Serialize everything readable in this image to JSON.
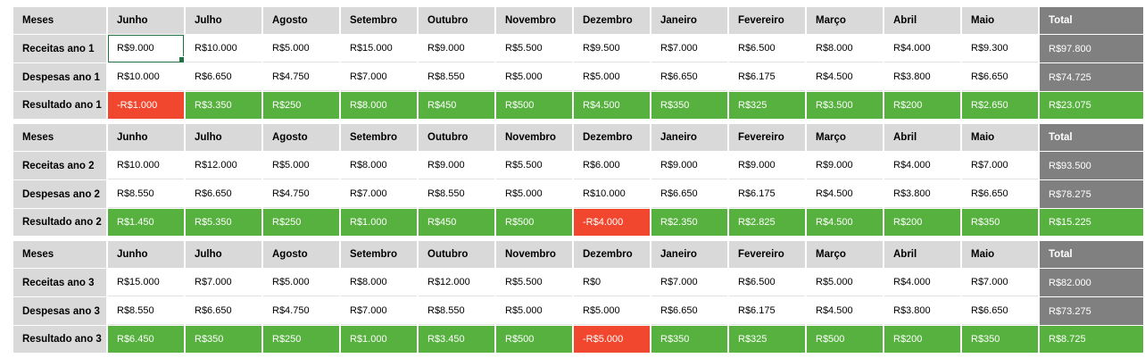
{
  "months": [
    "Junho",
    "Julho",
    "Agosto",
    "Setembro",
    "Outubro",
    "Novembro",
    "Dezembro",
    "Janeiro",
    "Fevereiro",
    "Março",
    "Abril",
    "Maio"
  ],
  "header_label": "Meses",
  "total_label": "Total",
  "years": [
    {
      "rows": [
        {
          "label": "Receitas ano 1",
          "type": "plain",
          "values": [
            "R$9.000",
            "R$10.000",
            "R$5.000",
            "R$15.000",
            "R$9.000",
            "R$5.500",
            "R$9.500",
            "R$7.000",
            "R$6.500",
            "R$8.000",
            "R$4.000",
            "R$9.300"
          ],
          "total": "R$97.800"
        },
        {
          "label": "Despesas ano 1",
          "type": "plain",
          "values": [
            "R$10.000",
            "R$6.650",
            "R$4.750",
            "R$7.000",
            "R$8.550",
            "R$5.000",
            "R$5.000",
            "R$6.650",
            "R$6.175",
            "R$4.500",
            "R$3.800",
            "R$6.650"
          ],
          "total": "R$74.725"
        },
        {
          "label": "Resultado ano 1",
          "type": "result",
          "values": [
            "-R$1.000",
            "R$3.350",
            "R$250",
            "R$8.000",
            "R$450",
            "R$500",
            "R$4.500",
            "R$350",
            "R$325",
            "R$3.500",
            "R$200",
            "R$2.650"
          ],
          "total": "R$23.075"
        }
      ]
    },
    {
      "rows": [
        {
          "label": "Receitas ano 2",
          "type": "plain",
          "values": [
            "R$10.000",
            "R$12.000",
            "R$5.000",
            "R$8.000",
            "R$9.000",
            "R$5.500",
            "R$6.000",
            "R$9.000",
            "R$9.000",
            "R$9.000",
            "R$4.000",
            "R$7.000"
          ],
          "total": "R$93.500"
        },
        {
          "label": "Despesas ano 2",
          "type": "plain",
          "values": [
            "R$8.550",
            "R$6.650",
            "R$4.750",
            "R$7.000",
            "R$8.550",
            "R$5.000",
            "R$10.000",
            "R$6.650",
            "R$6.175",
            "R$4.500",
            "R$3.800",
            "R$6.650"
          ],
          "total": "R$78.275"
        },
        {
          "label": "Resultado ano 2",
          "type": "result",
          "values": [
            "R$1.450",
            "R$5.350",
            "R$250",
            "R$1.000",
            "R$450",
            "R$500",
            "-R$4.000",
            "R$2.350",
            "R$2.825",
            "R$4.500",
            "R$200",
            "R$350"
          ],
          "total": "R$15.225"
        }
      ]
    },
    {
      "rows": [
        {
          "label": "Receitas ano 3",
          "type": "plain",
          "values": [
            "R$15.000",
            "R$7.000",
            "R$5.000",
            "R$8.000",
            "R$12.000",
            "R$5.500",
            "R$0",
            "R$7.000",
            "R$6.500",
            "R$5.000",
            "R$4.000",
            "R$7.000"
          ],
          "total": "R$82.000"
        },
        {
          "label": "Despesas ano 3",
          "type": "plain",
          "values": [
            "R$8.550",
            "R$6.650",
            "R$4.750",
            "R$7.000",
            "R$8.550",
            "R$5.000",
            "R$5.000",
            "R$6.650",
            "R$6.175",
            "R$4.500",
            "R$3.800",
            "R$6.650"
          ],
          "total": "R$73.275"
        },
        {
          "label": "Resultado ano 3",
          "type": "result",
          "values": [
            "R$6.450",
            "R$350",
            "R$250",
            "R$1.000",
            "R$3.450",
            "R$500",
            "-R$5.000",
            "R$350",
            "R$325",
            "R$500",
            "R$200",
            "R$350"
          ],
          "total": "R$8.725"
        }
      ]
    }
  ],
  "colors": {
    "header": "#d9d9d9",
    "total": "#808080",
    "positive": "#57b13f",
    "negative": "#f0472e",
    "selection": "#217346"
  }
}
